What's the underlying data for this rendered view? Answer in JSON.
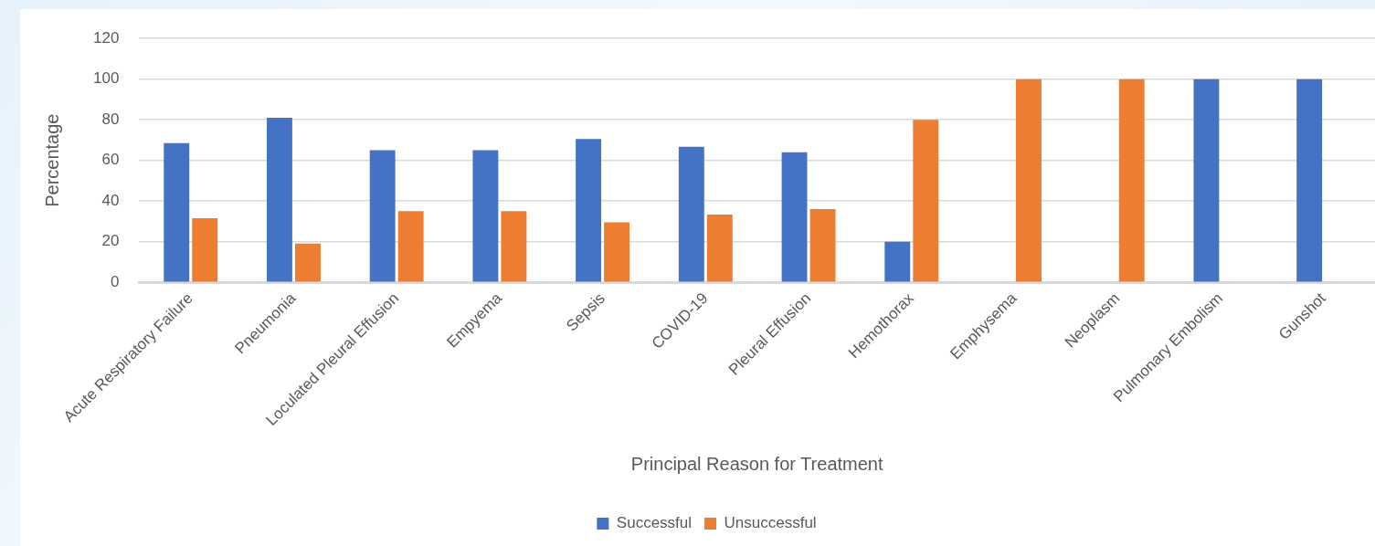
{
  "chart_data": {
    "type": "bar",
    "xlabel": "Principal Reason for Treatment",
    "ylabel": "Percentage",
    "categories": [
      "Acute Respiratory Failure",
      "Pneumonia",
      "Loculated Pleural Effusion",
      "Empyema",
      "Sepsis",
      "COVID-19",
      "Pleural Effusion",
      "Hemothorax",
      "Emphysema",
      "Neoplasm",
      "Pulmonary Embolism",
      "Gunshot"
    ],
    "series": [
      {
        "name": "Successful",
        "color": "#4472c4",
        "values": [
          68.5,
          81,
          65,
          65,
          70.5,
          66.7,
          64,
          20,
          0,
          0,
          100,
          100
        ]
      },
      {
        "name": "Unsuccessful",
        "color": "#ed7d31",
        "values": [
          31.5,
          19,
          35,
          35,
          29.5,
          33.3,
          36,
          80,
          100,
          100,
          0,
          0
        ]
      }
    ],
    "ylim": [
      0,
      120
    ],
    "yticks": [
      0,
      20,
      40,
      60,
      80,
      100,
      120
    ],
    "grid": "y",
    "legend": "bottom"
  }
}
